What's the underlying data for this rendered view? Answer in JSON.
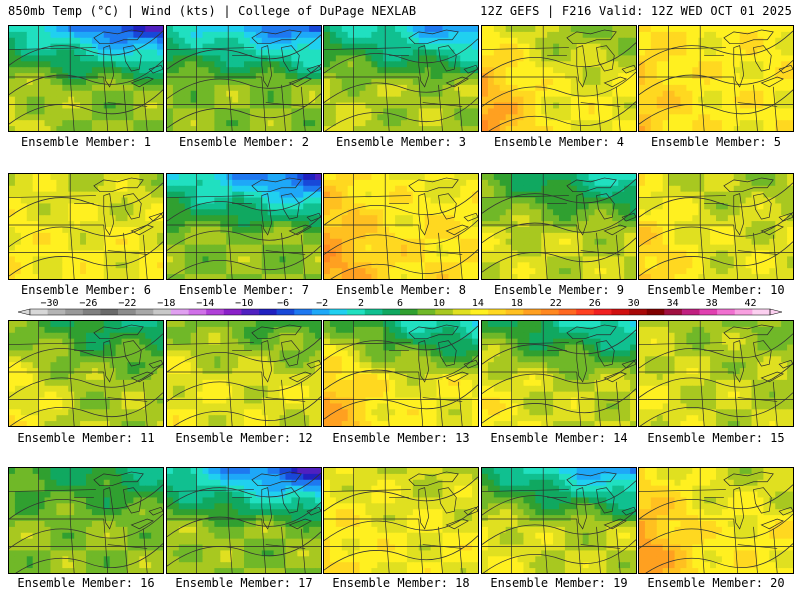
{
  "header": {
    "left": "850mb Temp (°C) | Wind (kts) | College of DuPage NEXLAB",
    "right": "12Z GEFS | F216 Valid: 12Z WED OCT 01 2025"
  },
  "label_prefix": "Ensemble Member:",
  "members": [
    {
      "label": "Ensemble Member: 1",
      "base": 14,
      "cold_north": 16,
      "warm_west": 2
    },
    {
      "label": "Ensemble Member: 2",
      "base": 14,
      "cold_north": 14,
      "warm_west": 0
    },
    {
      "label": "Ensemble Member: 3",
      "base": 15,
      "cold_north": 13,
      "warm_west": 1
    },
    {
      "label": "Ensemble Member: 4",
      "base": 18,
      "cold_north": 4,
      "warm_west": 7
    },
    {
      "label": "Ensemble Member: 5",
      "base": 19,
      "cold_north": 0,
      "warm_west": 3
    },
    {
      "label": "Ensemble Member: 6",
      "base": 18,
      "cold_north": 2,
      "warm_west": 1
    },
    {
      "label": "Ensemble Member: 7",
      "base": 14,
      "cold_north": 15,
      "warm_west": 0
    },
    {
      "label": "Ensemble Member: 8",
      "base": 20,
      "cold_north": 2,
      "warm_west": 5
    },
    {
      "label": "Ensemble Member: 9",
      "base": 16,
      "cold_north": 9,
      "warm_west": 1
    },
    {
      "label": "Ensemble Member: 10",
      "base": 17,
      "cold_north": 2,
      "warm_west": 5
    },
    {
      "label": "Ensemble Member: 11",
      "base": 15,
      "cold_north": 6,
      "warm_west": 4
    },
    {
      "label": "Ensemble Member: 12",
      "base": 17,
      "cold_north": 5,
      "warm_west": 1
    },
    {
      "label": "Ensemble Member: 13",
      "base": 18,
      "cold_north": 12,
      "warm_west": 6
    },
    {
      "label": "Ensemble Member: 14",
      "base": 16,
      "cold_north": 10,
      "warm_west": 3
    },
    {
      "label": "Ensemble Member: 15",
      "base": 16,
      "cold_north": 2,
      "warm_west": 2
    },
    {
      "label": "Ensemble Member: 16",
      "base": 14,
      "cold_north": 5,
      "warm_west": 0
    },
    {
      "label": "Ensemble Member: 17",
      "base": 14,
      "cold_north": 16,
      "warm_west": 1
    },
    {
      "label": "Ensemble Member: 18",
      "base": 18,
      "cold_north": 2,
      "warm_west": 2
    },
    {
      "label": "Ensemble Member: 19",
      "base": 16,
      "cold_north": 14,
      "warm_west": 2
    },
    {
      "label": "Ensemble Member: 20",
      "base": 19,
      "cold_north": 3,
      "warm_west": 6
    }
  ],
  "colorbar": {
    "tick_labels": [
      "−30",
      "−26",
      "−22",
      "−18",
      "−14",
      "−10",
      "−6",
      "−2",
      "2",
      "6",
      "10",
      "14",
      "18",
      "22",
      "26",
      "30",
      "34",
      "38",
      "42"
    ],
    "min": -32,
    "max": 44,
    "step": 2,
    "colors": [
      "#d8d8d8",
      "#b4b4b4",
      "#9a9a9a",
      "#808080",
      "#6a6a6a",
      "#8c8c8c",
      "#a8a8a8",
      "#c8c8c8",
      "#e0a0f0",
      "#d070e8",
      "#b040d8",
      "#8a20c8",
      "#5020c0",
      "#2020c0",
      "#1848d8",
      "#1e78f0",
      "#1ea8f8",
      "#20d0f0",
      "#20e0c0",
      "#10c090",
      "#10a860",
      "#30a030",
      "#70b828",
      "#a8c820",
      "#e0e020",
      "#fff020",
      "#ffd820",
      "#ffc020",
      "#ffa020",
      "#ff8820",
      "#ff6820",
      "#ff4020",
      "#f02020",
      "#d01010",
      "#a80808",
      "#800000",
      "#a01040",
      "#c02080",
      "#e040b0",
      "#f070d0",
      "#f8a0e0",
      "#fcd0f0"
    ]
  }
}
